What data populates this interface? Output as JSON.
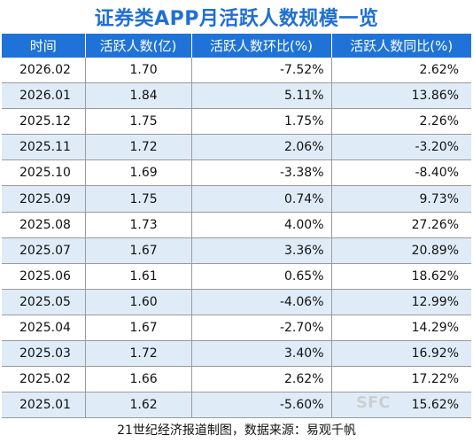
{
  "title": "证券类APP月活跃人数规模一览",
  "columns": [
    "时间",
    "活跃人数(亿)",
    "活跃人数环比(%)",
    "活跃人数同比(%)"
  ],
  "rows": [
    [
      "2026.02",
      "1.70",
      "-7.52%",
      "2.62%"
    ],
    [
      "2026.01",
      "1.84",
      "5.11%",
      "13.86%"
    ],
    [
      "2025.12",
      "1.75",
      "1.75%",
      "2.26%"
    ],
    [
      "2025.11",
      "1.72",
      "2.06%",
      "-3.20%"
    ],
    [
      "2025.10",
      "1.69",
      "-3.38%",
      "-8.40%"
    ],
    [
      "2025.09",
      "1.75",
      "0.74%",
      "9.73%"
    ],
    [
      "2025.08",
      "1.73",
      "4.00%",
      "27.26%"
    ],
    [
      "2025.07",
      "1.67",
      "3.36%",
      "20.89%"
    ],
    [
      "2025.06",
      "1.61",
      "0.65%",
      "18.62%"
    ],
    [
      "2025.05",
      "1.60",
      "-4.06%",
      "12.99%"
    ],
    [
      "2025.04",
      "1.67",
      "-2.70%",
      "14.29%"
    ],
    [
      "2025.03",
      "1.72",
      "3.40%",
      "16.92%"
    ],
    [
      "2025.02",
      "1.66",
      "2.62%",
      "17.22%"
    ],
    [
      "2025.01",
      "1.62",
      "-5.60%",
      "15.62%"
    ]
  ],
  "footer": "21世纪经济报道制图，数据来源：易观千帆",
  "watermark": "SFC",
  "colors": {
    "title": "#1f6fd6",
    "header_bg": "#1f73d8",
    "alt_row_bg": "#dfecf8"
  }
}
